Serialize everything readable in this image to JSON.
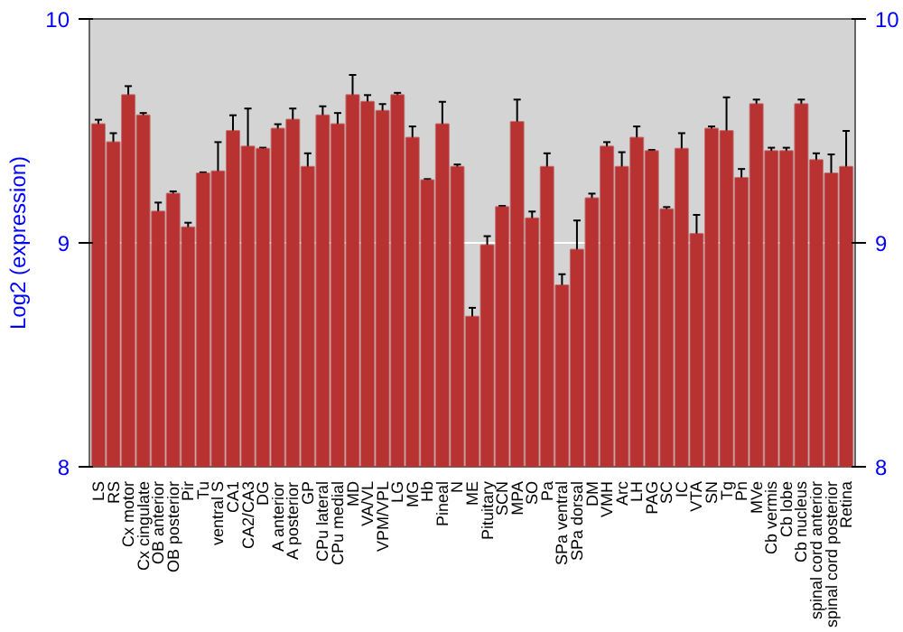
{
  "chart_data": {
    "type": "bar",
    "ylabel": "Log2 (expression)",
    "categories": [
      "LS",
      "RS",
      "Cx motor",
      "Cx cingulate",
      "OB anterior",
      "OB posterior",
      "Pir",
      "Tu",
      "ventral S",
      "CA1",
      "CA2/CA3",
      "DG",
      "A anterior",
      "A posterior",
      "GP",
      "CPu lateral",
      "CPu medial",
      "MD",
      "VA/VL",
      "VPM/VPL",
      "LG",
      "MG",
      "Hb",
      "Pineal",
      "N",
      "ME",
      "Pituitary",
      "SCN",
      "MPA",
      "SO",
      "Pa",
      "SPa ventral",
      "SPa dorsal",
      "DM",
      "VMH",
      "Arc",
      "LH",
      "PAG",
      "SC",
      "IC",
      "VTA",
      "SN",
      "Tg",
      "Pn",
      "MVe",
      "Cb vermis",
      "Cb lobe",
      "Cb nucleus",
      "spinal cord anterior",
      "spinal cord posterior",
      "Retina"
    ],
    "values": [
      9.53,
      9.45,
      9.66,
      9.57,
      9.14,
      9.22,
      9.07,
      9.31,
      9.32,
      9.5,
      9.43,
      9.42,
      9.51,
      9.55,
      9.34,
      9.57,
      9.53,
      9.66,
      9.63,
      9.59,
      9.66,
      9.47,
      9.28,
      9.53,
      9.34,
      8.67,
      8.99,
      9.16,
      9.54,
      9.11,
      9.34,
      8.81,
      8.97,
      9.2,
      9.43,
      9.34,
      9.47,
      9.41,
      9.15,
      9.42,
      9.04,
      9.51,
      9.5,
      9.29,
      9.62,
      9.41,
      9.41,
      9.62,
      9.37,
      9.31,
      9.34
    ],
    "errors": [
      0.02,
      0.04,
      0.04,
      0.01,
      0.04,
      0.01,
      0.02,
      0.005,
      0.13,
      0.07,
      0.17,
      0.005,
      0.02,
      0.05,
      0.06,
      0.04,
      0.05,
      0.09,
      0.03,
      0.03,
      0.01,
      0.05,
      0.005,
      0.1,
      0.01,
      0.04,
      0.04,
      0.005,
      0.1,
      0.03,
      0.06,
      0.05,
      0.13,
      0.02,
      0.02,
      0.065,
      0.05,
      0.005,
      0.01,
      0.07,
      0.085,
      0.01,
      0.15,
      0.04,
      0.02,
      0.015,
      0.015,
      0.02,
      0.03,
      0.085,
      0.16
    ],
    "color": "#b83232",
    "ylim": [
      8,
      10
    ],
    "yticks": [
      8,
      9,
      10
    ],
    "y2lim": [
      8,
      10
    ],
    "y2ticks": [
      8,
      9,
      10
    ],
    "grid": "y"
  }
}
